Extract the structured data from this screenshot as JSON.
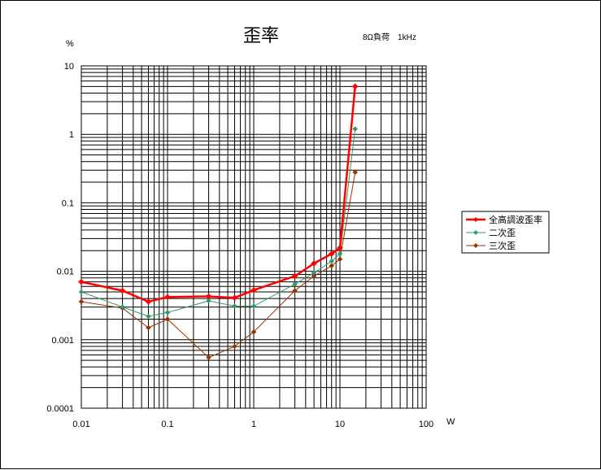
{
  "chart_data": {
    "type": "line",
    "title": "歪率",
    "subtitle": "8Ω負荷　1kHz",
    "ylabel": "%",
    "xlabel": "W",
    "xscale": "log",
    "yscale": "log",
    "xlim": [
      0.01,
      100
    ],
    "ylim": [
      0.0001,
      10
    ],
    "grid": true,
    "legend_position": "right",
    "x_tick_labels": [
      "0.01",
      "0.1",
      "1",
      "10",
      "100"
    ],
    "y_tick_labels": [
      "10",
      "1",
      "0.1",
      "0.01",
      "0.001",
      "0.0001"
    ],
    "series": [
      {
        "name": "全高調波歪率",
        "color": "#ff0000",
        "marker": "diamond",
        "points": [
          [
            0.01,
            0.007
          ],
          [
            0.03,
            0.0052
          ],
          [
            0.06,
            0.0036
          ],
          [
            0.1,
            0.0042
          ],
          [
            0.3,
            0.0043
          ],
          [
            0.6,
            0.0041
          ],
          [
            1,
            0.0053
          ],
          [
            3,
            0.0085
          ],
          [
            5,
            0.013
          ],
          [
            8,
            0.018
          ],
          [
            10,
            0.022
          ],
          [
            15,
            5.0
          ]
        ]
      },
      {
        "name": "二次歪",
        "color": "#339966",
        "marker": "diamond",
        "points": [
          [
            0.01,
            0.005
          ],
          [
            0.03,
            0.003
          ],
          [
            0.06,
            0.0022
          ],
          [
            0.1,
            0.0025
          ],
          [
            0.3,
            0.0037
          ],
          [
            0.6,
            0.0031
          ],
          [
            1,
            0.0031
          ],
          [
            3,
            0.0065
          ],
          [
            5,
            0.0095
          ],
          [
            8,
            0.014
          ],
          [
            10,
            0.018
          ],
          [
            15,
            1.2
          ]
        ]
      },
      {
        "name": "三次歪",
        "color": "#993300",
        "marker": "diamond",
        "points": [
          [
            0.01,
            0.0036
          ],
          [
            0.03,
            0.0029
          ],
          [
            0.06,
            0.0015
          ],
          [
            0.1,
            0.002
          ],
          [
            0.3,
            0.00055
          ],
          [
            0.6,
            0.0008
          ],
          [
            1,
            0.0013
          ],
          [
            3,
            0.0052
          ],
          [
            5,
            0.0085
          ],
          [
            8,
            0.012
          ],
          [
            10,
            0.015
          ],
          [
            15,
            0.28
          ]
        ]
      }
    ]
  }
}
